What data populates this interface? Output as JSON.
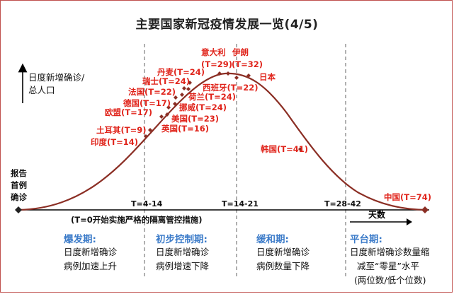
{
  "title": "主要国家新冠疫情发展一览(4/5)",
  "y_axis_label_1": "日度新增确诊/",
  "y_axis_label_2": "总人口",
  "x_axis_label": "天数",
  "report_label": [
    "报告",
    "首例",
    "确诊"
  ],
  "time_marks": [
    "T=4-14",
    "T=14-21",
    "T=28-42"
  ],
  "intervention_note": "(T=0开始实施严格的隔离管控措施)",
  "countries": [
    {
      "label": "印度(T=14)"
    },
    {
      "label": "土耳其(T=9)"
    },
    {
      "label": "欧盟(T=17)"
    },
    {
      "label": "德国(T=17)"
    },
    {
      "label": "法国(T=22)"
    },
    {
      "label": "瑞士(T=24)"
    },
    {
      "label": "丹麦(T=24)"
    },
    {
      "label": "意大利"
    },
    {
      "label": "伊朗"
    },
    {
      "label": "(T=29)"
    },
    {
      "label": "(T=32)"
    },
    {
      "label": "日本"
    },
    {
      "label": "西班牙(T=22)"
    },
    {
      "label": "荷兰(T=24)"
    },
    {
      "label": "挪威(T=24)"
    },
    {
      "label": "美国(T=23)"
    },
    {
      "label": "英国(T=16)"
    },
    {
      "label": "韩国(T=41)"
    },
    {
      "label": "中国(T=74)"
    }
  ],
  "stages": [
    {
      "name": "爆发期:",
      "lines": [
        "日度新增确诊",
        "病例加速上升"
      ]
    },
    {
      "name": "初步控制期:",
      "lines": [
        "日度新增确诊",
        "病例增速下降"
      ]
    },
    {
      "name": "缓和期:",
      "lines": [
        "日度新增确诊",
        "病例数量下降"
      ]
    },
    {
      "name": "平台期:",
      "lines": [
        "日度新增确诊数量缩",
        "减至“零星”水平",
        "(两位数/低个位数)"
      ]
    }
  ],
  "colors": {
    "curve": "#8b2e24",
    "label": "#e0241b",
    "stage_title": "#3d7cc9",
    "frame": "#c0504d",
    "divider": "#b0b0b0"
  }
}
